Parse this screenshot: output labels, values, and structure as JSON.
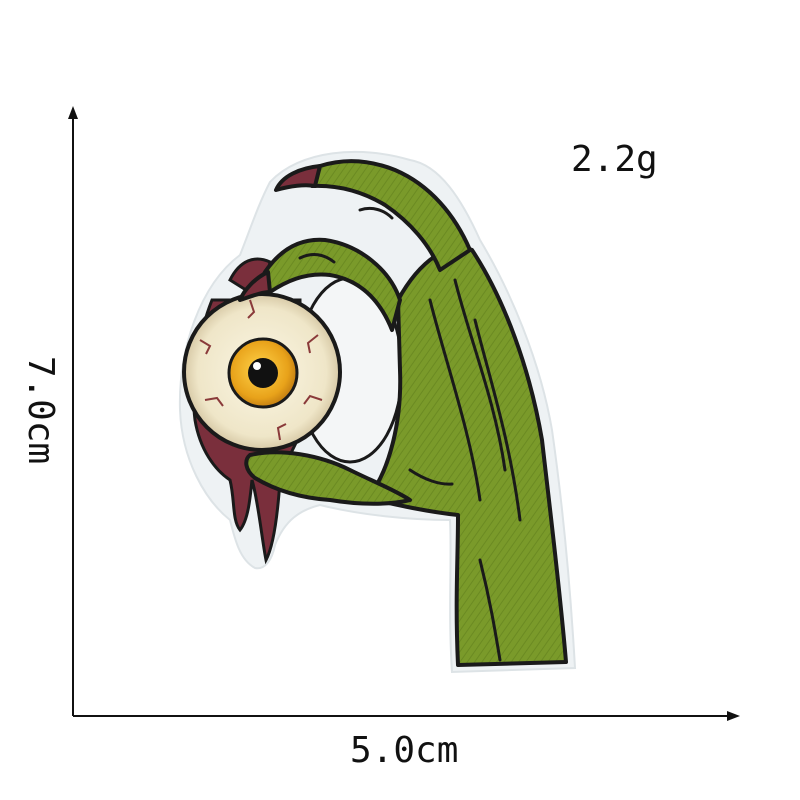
{
  "product": {
    "weight": "2.2g",
    "width_dimension": "5.0cm",
    "height_dimension": "7.0cm",
    "subject": "embroidered patch of a green zombie hand holding an eyeball"
  },
  "colors": {
    "background": "#ffffff",
    "hand_green": "#7a9a2a",
    "hand_shadow": "#4f6a18",
    "outline": "#1a1a1a",
    "patch_border": "#eef2f4",
    "eye_iris": "#e8a21a",
    "eye_white": "#f1ead2",
    "flesh": "#7a2f3c",
    "dimension_line": "#111111"
  }
}
